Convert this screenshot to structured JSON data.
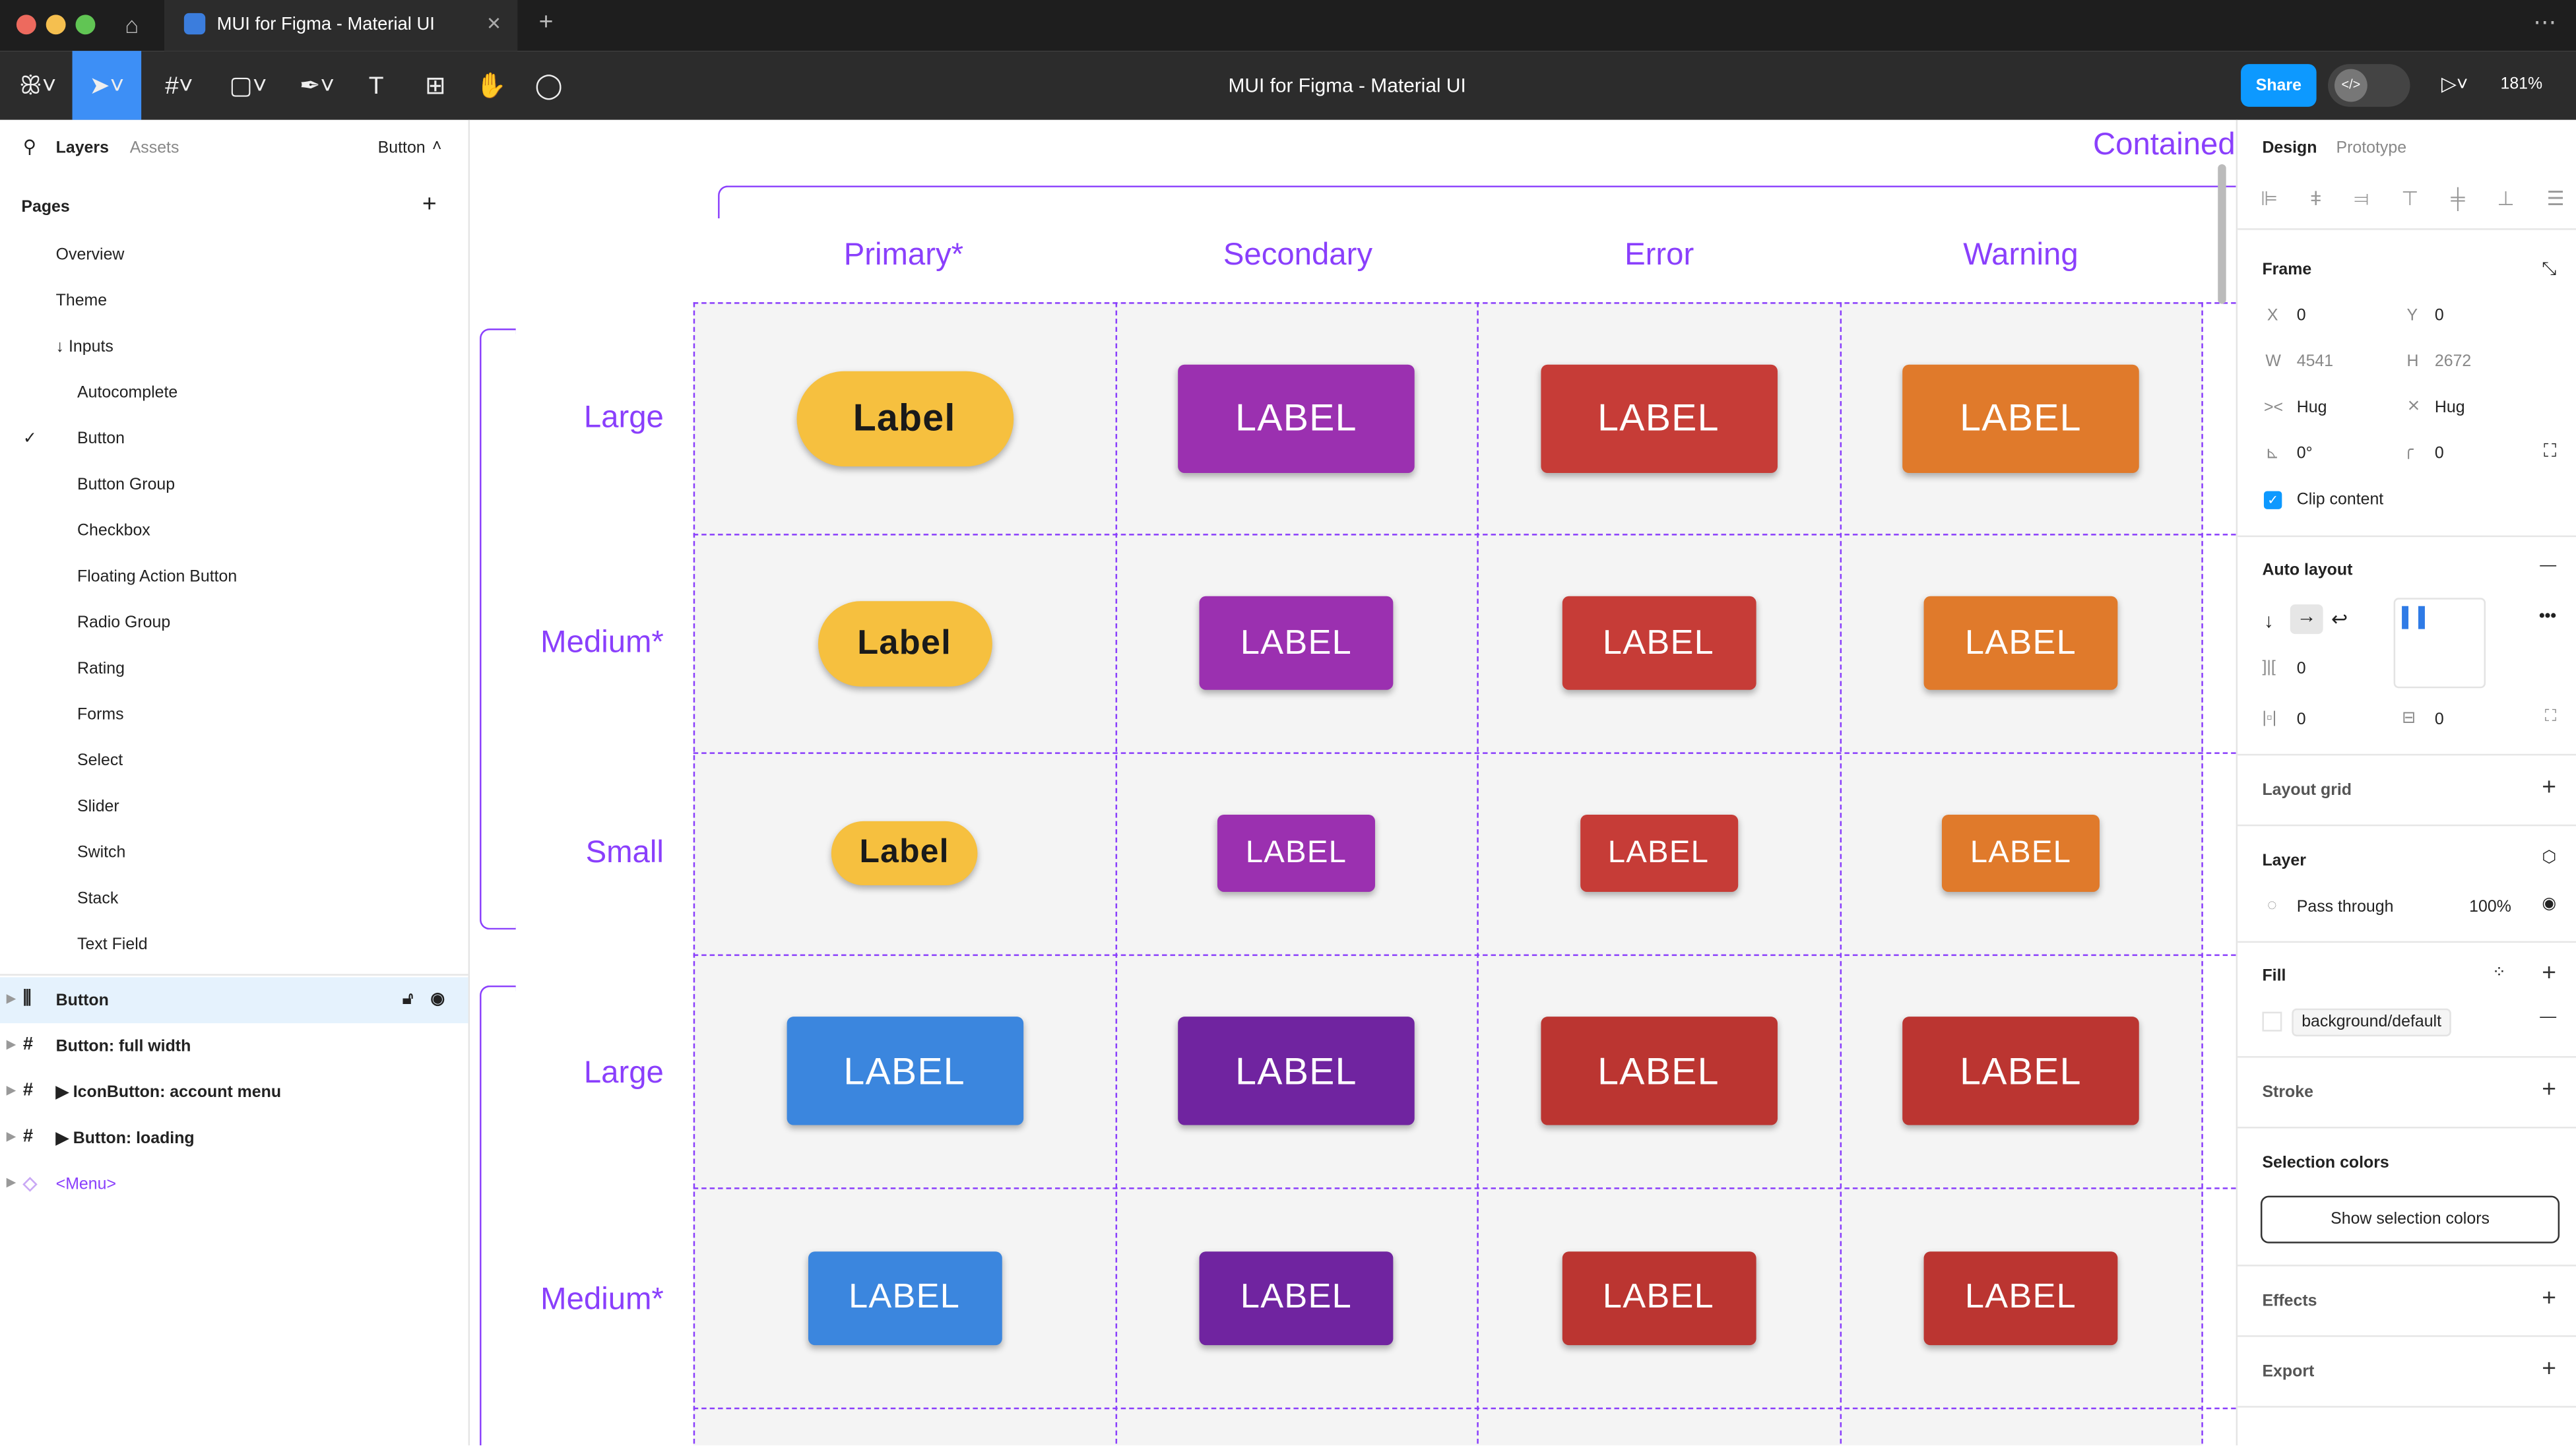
{
  "window": {
    "tab_title": "MUI for Figma - Material UI",
    "doc_title": "MUI for Figma - Material UI",
    "share": "Share",
    "zoom": "181%"
  },
  "left": {
    "tabs": [
      "Layers",
      "Assets"
    ],
    "page_selector": "Button",
    "pages_title": "Pages",
    "pages": [
      "Overview",
      "Theme",
      "↓ Inputs",
      "Autocomplete",
      "Button",
      "Button Group",
      "Checkbox",
      "Floating Action Button",
      "Radio Group",
      "Rating",
      "Forms",
      "Select",
      "Slider",
      "Switch",
      "Stack",
      "Text Field"
    ],
    "current_page": "Button",
    "layers": [
      {
        "name": "Button",
        "icon": "auto-layout-icon",
        "selected": true
      },
      {
        "name": "Button: full width",
        "icon": "frame-icon"
      },
      {
        "name": "▶ IconButton: account menu",
        "icon": "frame-icon"
      },
      {
        "name": "▶ Button: loading",
        "icon": "frame-icon"
      },
      {
        "name": "<Menu>",
        "icon": "component-icon",
        "purple": true
      }
    ]
  },
  "canvas": {
    "frame_title": "Contained",
    "columns": [
      "Primary*",
      "Secondary",
      "Error",
      "Warning"
    ],
    "rows": [
      {
        "label": "Large",
        "size": "large"
      },
      {
        "label": "Medium*",
        "size": "medium"
      },
      {
        "label": "Small",
        "size": "small"
      },
      {
        "label": "Large",
        "size": "large"
      },
      {
        "label": "Medium*",
        "size": "medium"
      }
    ],
    "buttons": [
      [
        {
          "label": "Label",
          "color": "#f6c03f",
          "pill": true
        },
        {
          "label": "LABEL",
          "color": "#9b30b0"
        },
        {
          "label": "LABEL",
          "color": "#c63c37"
        },
        {
          "label": "LABEL",
          "color": "#e07a2b"
        }
      ],
      [
        {
          "label": "Label",
          "color": "#f6c03f",
          "pill": true
        },
        {
          "label": "LABEL",
          "color": "#9b30b0"
        },
        {
          "label": "LABEL",
          "color": "#c63c37"
        },
        {
          "label": "LABEL",
          "color": "#e07a2b"
        }
      ],
      [
        {
          "label": "Label",
          "color": "#f6c03f",
          "pill": true
        },
        {
          "label": "LABEL",
          "color": "#9b30b0"
        },
        {
          "label": "LABEL",
          "color": "#c63c37"
        },
        {
          "label": "LABEL",
          "color": "#e07a2b"
        }
      ],
      [
        {
          "label": "LABEL",
          "color": "#3b86de"
        },
        {
          "label": "LABEL",
          "color": "#7024a0"
        },
        {
          "label": "LABEL",
          "color": "#bb3531"
        },
        {
          "label": "LABEL",
          "color": "#bb3531"
        }
      ],
      [
        {
          "label": "LABEL",
          "color": "#3b86de"
        },
        {
          "label": "LABEL",
          "color": "#7024a0"
        },
        {
          "label": "LABEL",
          "color": "#bb3531"
        },
        {
          "label": "LABEL",
          "color": "#bb3531"
        }
      ]
    ]
  },
  "right": {
    "tabs": [
      "Design",
      "Prototype"
    ],
    "frame": {
      "title": "Frame",
      "x_label": "X",
      "x": "0",
      "y_label": "Y",
      "y": "0",
      "w_label": "W",
      "w": "4541",
      "h_label": "H",
      "h": "2672",
      "hw": "Hug",
      "hh": "Hug",
      "rotation": "0°",
      "radius": "0",
      "clip": "Clip content"
    },
    "auto_layout": {
      "title": "Auto layout",
      "gap": "0",
      "padding_h": "0",
      "padding_v": "0"
    },
    "layout_grid": "Layout grid",
    "layer": {
      "title": "Layer",
      "blend": "Pass through",
      "opacity": "100%"
    },
    "fill": {
      "title": "Fill",
      "style": "background/default"
    },
    "stroke": "Stroke",
    "selection_colors": {
      "title": "Selection colors",
      "button": "Show selection colors"
    },
    "effects": "Effects",
    "export": "Export"
  },
  "colors": {
    "accent": "#0d99ff",
    "frame_purple": "#8a3ffc"
  }
}
